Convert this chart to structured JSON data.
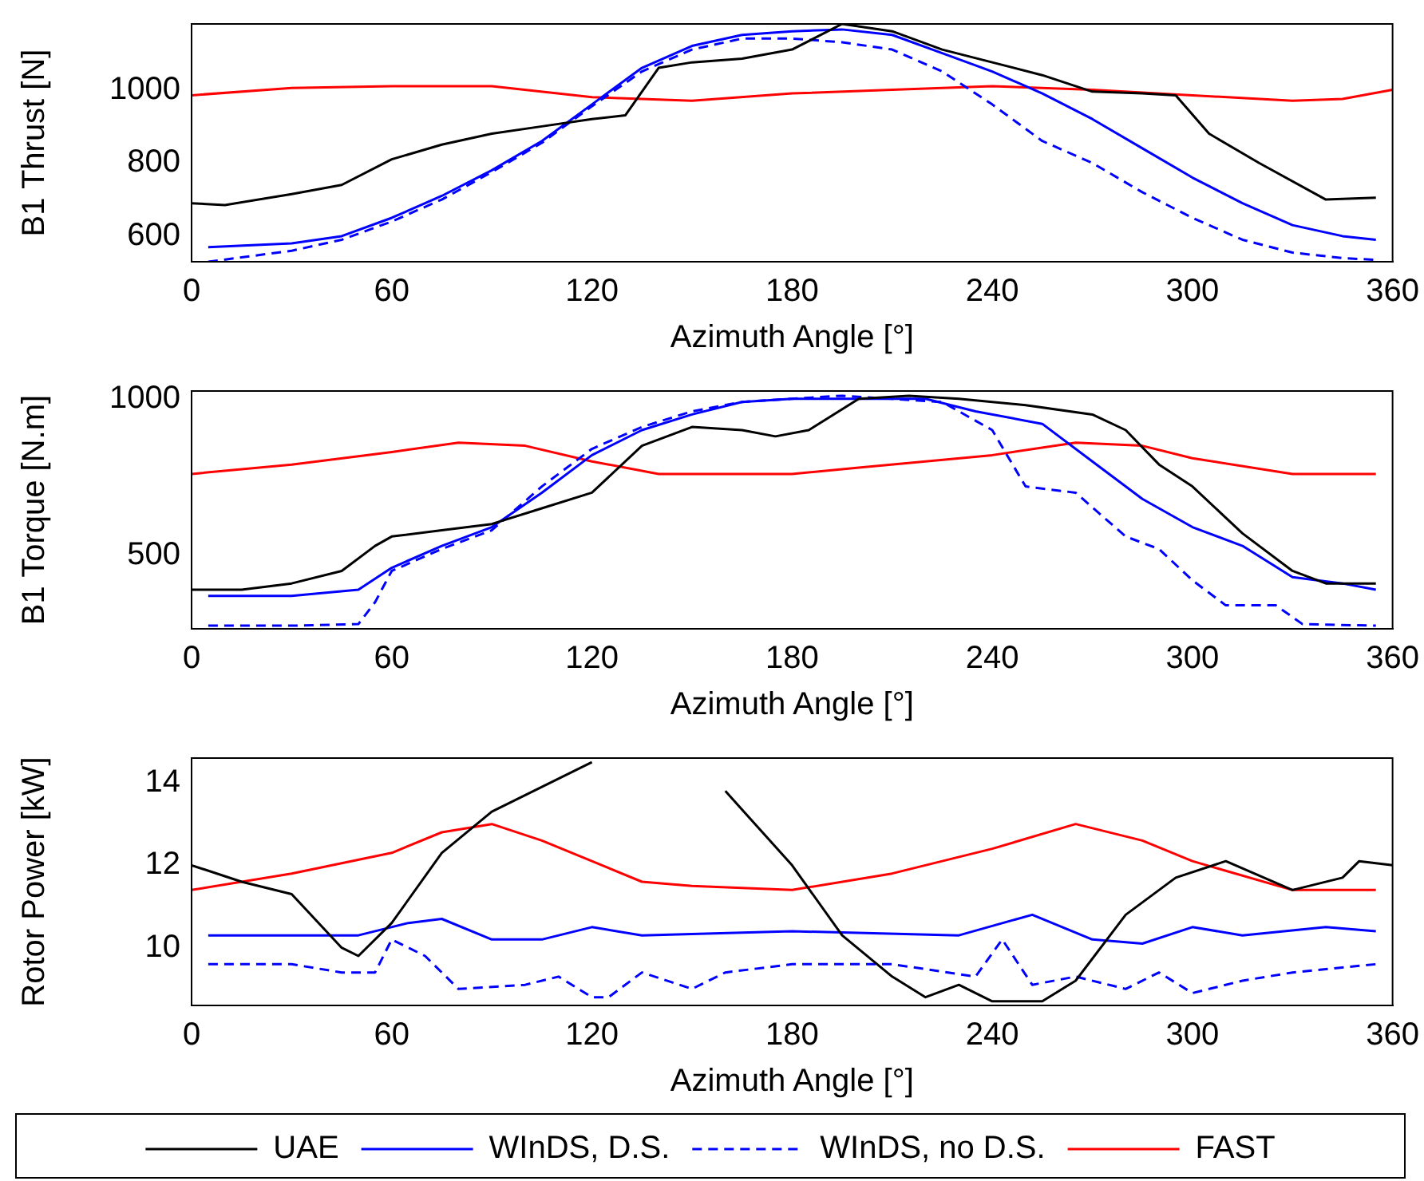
{
  "chart_data": [
    {
      "type": "line",
      "xlabel": "Azimuth Angle [°]",
      "ylabel": "B1 Thrust [N]",
      "xlim": [
        0,
        360
      ],
      "xticks": [
        0,
        60,
        120,
        180,
        240,
        300,
        360
      ],
      "ylim": [
        530,
        1180
      ],
      "yticks": [
        600,
        800,
        1000
      ],
      "grid": false,
      "legend": false,
      "marker": "none",
      "series": [
        {
          "color": "#000000",
          "x": [
            0,
            10,
            30,
            45,
            60,
            75,
            90,
            105,
            120,
            130,
            140,
            150,
            165,
            180,
            195,
            210,
            225,
            240,
            255,
            270,
            285,
            295,
            305,
            320,
            340,
            355
          ],
          "values": [
            690,
            685,
            715,
            740,
            810,
            850,
            880,
            900,
            920,
            930,
            1060,
            1075,
            1085,
            1110,
            1180,
            1160,
            1110,
            1075,
            1040,
            995,
            990,
            985,
            880,
            800,
            700,
            705
          ]
        },
        {
          "color": "#0000ff",
          "x": [
            5,
            30,
            45,
            60,
            75,
            90,
            105,
            120,
            135,
            150,
            165,
            180,
            195,
            210,
            225,
            240,
            255,
            270,
            285,
            300,
            315,
            330,
            345,
            355
          ],
          "values": [
            570,
            580,
            600,
            650,
            710,
            780,
            860,
            960,
            1060,
            1120,
            1150,
            1160,
            1165,
            1150,
            1100,
            1050,
            990,
            920,
            840,
            760,
            690,
            630,
            600,
            590
          ]
        },
        {
          "color": "#0000ff",
          "line_style": "dashed",
          "x": [
            5,
            30,
            45,
            60,
            75,
            90,
            105,
            120,
            135,
            150,
            165,
            180,
            195,
            210,
            225,
            240,
            255,
            270,
            285,
            300,
            315,
            330,
            345,
            355
          ],
          "values": [
            530,
            560,
            590,
            640,
            700,
            775,
            855,
            955,
            1050,
            1110,
            1140,
            1140,
            1130,
            1110,
            1050,
            960,
            860,
            800,
            720,
            650,
            590,
            555,
            540,
            535
          ]
        },
        {
          "color": "#ff0000",
          "x": [
            0,
            30,
            60,
            90,
            120,
            150,
            180,
            210,
            240,
            270,
            300,
            330,
            345,
            360
          ],
          "values": [
            985,
            1005,
            1010,
            1010,
            980,
            970,
            990,
            1000,
            1010,
            1000,
            985,
            970,
            975,
            1000
          ]
        }
      ]
    },
    {
      "type": "line",
      "xlabel": "Azimuth Angle [°]",
      "ylabel": "B1 Torque [N.m]",
      "xlim": [
        0,
        360
      ],
      "xticks": [
        0,
        60,
        120,
        180,
        240,
        300,
        360
      ],
      "ylim": [
        265,
        1025
      ],
      "yticks": [
        500,
        1000
      ],
      "grid": false,
      "legend": false,
      "marker": "none",
      "series": [
        {
          "color": "#000000",
          "x": [
            0,
            15,
            30,
            45,
            55,
            60,
            75,
            90,
            105,
            120,
            135,
            150,
            165,
            175,
            185,
            200,
            215,
            230,
            250,
            270,
            280,
            290,
            300,
            315,
            330,
            340,
            355
          ],
          "values": [
            390,
            390,
            410,
            450,
            530,
            560,
            580,
            600,
            650,
            700,
            850,
            910,
            900,
            880,
            900,
            1000,
            1010,
            1000,
            980,
            950,
            900,
            790,
            720,
            570,
            450,
            410,
            410
          ]
        },
        {
          "color": "#0000ff",
          "x": [
            5,
            30,
            50,
            60,
            75,
            90,
            105,
            120,
            135,
            150,
            165,
            180,
            200,
            220,
            235,
            255,
            270,
            285,
            300,
            315,
            330,
            345,
            355
          ],
          "values": [
            370,
            370,
            390,
            460,
            530,
            590,
            700,
            820,
            900,
            950,
            990,
            1000,
            1000,
            1000,
            960,
            920,
            800,
            680,
            590,
            530,
            430,
            410,
            390
          ]
        },
        {
          "color": "#0000ff",
          "line_style": "dashed",
          "x": [
            5,
            30,
            50,
            55,
            60,
            75,
            90,
            105,
            120,
            135,
            150,
            165,
            180,
            195,
            210,
            225,
            240,
            250,
            265,
            280,
            290,
            300,
            310,
            325,
            333,
            355
          ],
          "values": [
            275,
            275,
            280,
            350,
            450,
            520,
            580,
            720,
            840,
            910,
            960,
            990,
            1000,
            1010,
            1000,
            990,
            900,
            720,
            700,
            560,
            520,
            420,
            340,
            340,
            280,
            275
          ]
        },
        {
          "color": "#ff0000",
          "x": [
            0,
            30,
            60,
            80,
            100,
            120,
            140,
            180,
            200,
            240,
            265,
            285,
            300,
            330,
            355
          ],
          "values": [
            760,
            790,
            830,
            860,
            850,
            800,
            760,
            760,
            780,
            820,
            860,
            850,
            810,
            760,
            760
          ]
        }
      ]
    },
    {
      "type": "line",
      "xlabel": "Azimuth Angle [°]",
      "ylabel": "Rotor Power [kW]",
      "xlim": [
        0,
        360
      ],
      "xticks": [
        0,
        60,
        120,
        180,
        240,
        300,
        360
      ],
      "ylim": [
        8.6,
        14.6
      ],
      "yticks": [
        10,
        12,
        14
      ],
      "grid": false,
      "legend": "bottom",
      "marker": "none",
      "series": [
        {
          "name": "UAE",
          "color": "#000000",
          "x": [
            0,
            15,
            30,
            45,
            50,
            60,
            75,
            90,
            105,
            120,
            130,
            145,
            160,
            180,
            195,
            210,
            220,
            230,
            240,
            255,
            265,
            280,
            295,
            310,
            330,
            345,
            350,
            360
          ],
          "values": [
            12.0,
            11.6,
            11.3,
            10.0,
            9.8,
            10.6,
            12.3,
            13.3,
            13.9,
            14.5,
            null,
            null,
            13.8,
            12.0,
            10.3,
            9.3,
            8.8,
            9.1,
            8.7,
            8.7,
            9.2,
            10.8,
            11.7,
            12.1,
            11.4,
            11.7,
            12.1,
            12.0
          ]
        },
        {
          "name": "WInDS, D.S.",
          "color": "#0000ff",
          "x": [
            5,
            50,
            65,
            75,
            90,
            105,
            120,
            135,
            180,
            230,
            252,
            270,
            285,
            300,
            315,
            340,
            355
          ],
          "values": [
            10.3,
            10.3,
            10.6,
            10.7,
            10.2,
            10.2,
            10.5,
            10.3,
            10.4,
            10.3,
            10.8,
            10.2,
            10.1,
            10.5,
            10.3,
            10.5,
            10.4
          ]
        },
        {
          "name": "WInDS, no D.S.",
          "color": "#0000ff",
          "line_style": "dashed",
          "x": [
            5,
            30,
            45,
            55,
            60,
            70,
            80,
            100,
            110,
            120,
            125,
            135,
            150,
            160,
            180,
            210,
            235,
            243,
            252,
            265,
            280,
            290,
            300,
            315,
            330,
            355
          ],
          "values": [
            9.6,
            9.6,
            9.4,
            9.4,
            10.2,
            9.8,
            9.0,
            9.1,
            9.3,
            8.8,
            8.8,
            9.4,
            9.0,
            9.4,
            9.6,
            9.6,
            9.3,
            10.2,
            9.1,
            9.3,
            9.0,
            9.4,
            8.9,
            9.2,
            9.4,
            9.6
          ]
        },
        {
          "name": "FAST",
          "color": "#ff0000",
          "x": [
            0,
            30,
            60,
            75,
            90,
            105,
            120,
            135,
            150,
            180,
            210,
            240,
            265,
            285,
            300,
            330,
            355
          ],
          "values": [
            11.4,
            11.8,
            12.3,
            12.8,
            13.0,
            12.6,
            12.1,
            11.6,
            11.5,
            11.4,
            11.8,
            12.4,
            13.0,
            12.6,
            12.1,
            11.4,
            11.4
          ]
        }
      ]
    }
  ]
}
